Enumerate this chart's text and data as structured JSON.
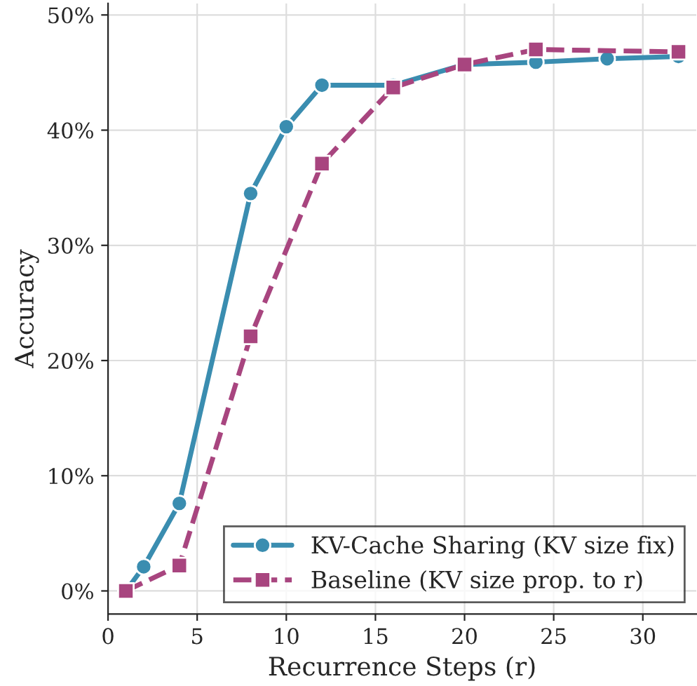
{
  "chart_data": {
    "type": "line",
    "xlabel": "Recurrence Steps (r)",
    "ylabel": "Accuracy",
    "xlim": [
      0,
      33
    ],
    "xticks": [
      0,
      5,
      10,
      15,
      20,
      25,
      30
    ],
    "ylim": [
      -2,
      51
    ],
    "yticks": [
      {
        "value": 0,
        "label": "0%"
      },
      {
        "value": 10,
        "label": "10%"
      },
      {
        "value": 20,
        "label": "20%"
      },
      {
        "value": 30,
        "label": "30%"
      },
      {
        "value": 40,
        "label": "40%"
      },
      {
        "value": 50,
        "label": "50%"
      }
    ],
    "grid": true,
    "legend": "bottom right",
    "series": [
      {
        "name": "KV-Cache Sharing (KV size fix)",
        "color": "#3a8db0",
        "marker": "circle",
        "line_style": "solid",
        "x": [
          1,
          2,
          4,
          8,
          10,
          12,
          16,
          20,
          24,
          28,
          32
        ],
        "values": [
          0,
          2.1,
          7.6,
          34.5,
          40.3,
          43.9,
          43.9,
          45.7,
          45.9,
          46.2,
          46.4
        ]
      },
      {
        "name": "Baseline (KV size prop. to r)",
        "color": "#a8457f",
        "marker": "square",
        "line_style": "dashed",
        "x": [
          1,
          4,
          8,
          12,
          16,
          20,
          24,
          32
        ],
        "values": [
          0,
          2.2,
          22.1,
          37.1,
          43.7,
          45.7,
          47.0,
          46.8
        ]
      }
    ]
  }
}
